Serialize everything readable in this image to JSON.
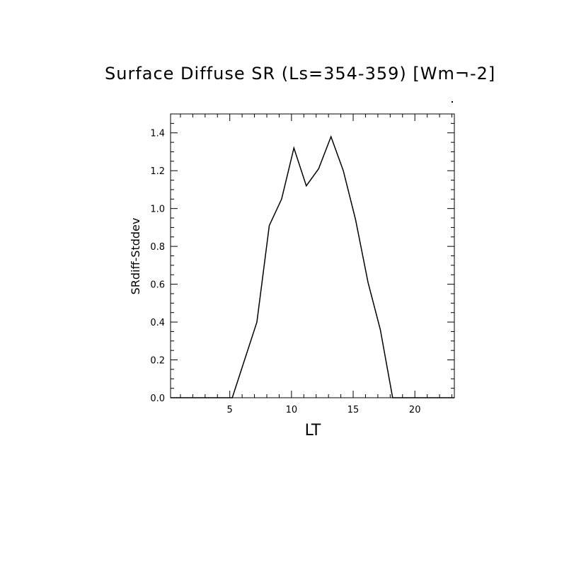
{
  "chart_data": {
    "type": "line",
    "title": "Surface Diffuse SR (Ls=354-359) [Wm¬-2]",
    "xlabel": "LT",
    "ylabel": "SRdiff-Stddev",
    "xlim": [
      0.2,
      23.2
    ],
    "ylim": [
      0.0,
      1.5
    ],
    "x_ticks": [
      5,
      10,
      15,
      20
    ],
    "x_tick_labels": [
      "5",
      "10",
      "15",
      "20"
    ],
    "y_ticks": [
      0.0,
      0.2,
      0.4,
      0.6,
      0.8,
      1.0,
      1.2,
      1.4
    ],
    "y_tick_labels": [
      "0.0",
      "0.2",
      "0.4",
      "0.6",
      "0.8",
      "1.0",
      "1.2",
      "1.4"
    ],
    "grid": false,
    "series": [
      {
        "x": [
          0.2,
          1.2,
          2.2,
          3.2,
          4.2,
          5.2,
          6.2,
          7.2,
          8.2,
          9.2,
          10.2,
          11.2,
          12.2,
          13.2,
          14.2,
          15.2,
          16.2,
          17.2,
          18.2,
          19.2,
          20.2,
          21.2,
          22.2,
          23.2
        ],
        "values": [
          0.0,
          0.0,
          0.0,
          0.0,
          0.0,
          0.0,
          0.2,
          0.4,
          0.91,
          1.05,
          1.32,
          1.12,
          1.21,
          1.38,
          1.2,
          0.94,
          0.61,
          0.36,
          0.0,
          0.0,
          0.0,
          0.0,
          0.0,
          0.0
        ]
      }
    ]
  }
}
